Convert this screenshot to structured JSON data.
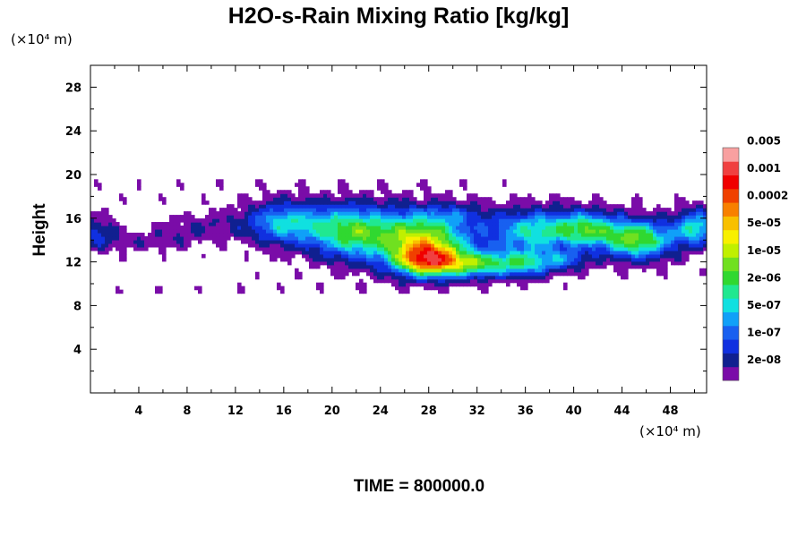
{
  "chart_data": {
    "type": "heatmap",
    "title": "H2O-s-Rain Mixing Ratio [kg/kg]",
    "ylabel": "Height",
    "x_unit": "(×10⁴ m)",
    "y_unit": "(×10⁴ m)",
    "xlim": [
      0,
      51
    ],
    "ylim": [
      0,
      30
    ],
    "xticks": [
      4,
      8,
      12,
      16,
      20,
      24,
      28,
      32,
      36,
      40,
      44,
      48
    ],
    "yticks": [
      4,
      8,
      12,
      16,
      20,
      24,
      28
    ],
    "footer": "TIME = 800000.0",
    "grid": false,
    "legend_position": "right",
    "colorbar": {
      "colors": [
        "#7a0ca8",
        "#102090",
        "#1030e0",
        "#1860f0",
        "#10a0f8",
        "#10e0e0",
        "#20e890",
        "#30d830",
        "#70e020",
        "#c0f000",
        "#f8f000",
        "#f8c000",
        "#f88000",
        "#f04000",
        "#f00000",
        "#f04040",
        "#f8a0a0"
      ],
      "labels": [
        "2e-08",
        "1e-07",
        "5e-07",
        "2e-06",
        "1e-05",
        "5e-05",
        "0.0002",
        "0.001",
        "0.005"
      ]
    }
  }
}
